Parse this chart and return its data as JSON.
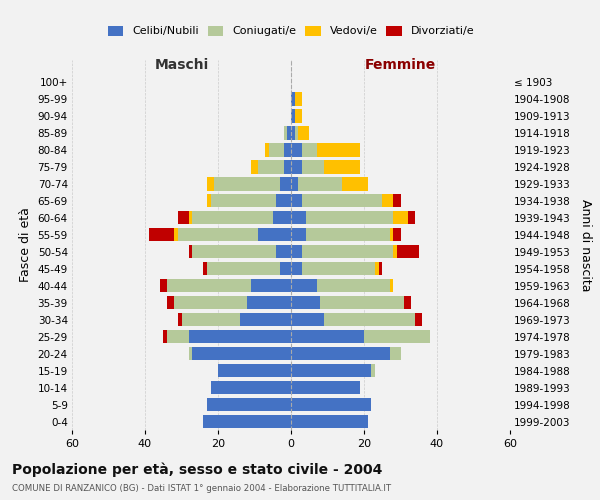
{
  "age_groups": [
    "0-4",
    "5-9",
    "10-14",
    "15-19",
    "20-24",
    "25-29",
    "30-34",
    "35-39",
    "40-44",
    "45-49",
    "50-54",
    "55-59",
    "60-64",
    "65-69",
    "70-74",
    "75-79",
    "80-84",
    "85-89",
    "90-94",
    "95-99",
    "100+"
  ],
  "birth_years": [
    "1999-2003",
    "1994-1998",
    "1989-1993",
    "1984-1988",
    "1979-1983",
    "1974-1978",
    "1969-1973",
    "1964-1968",
    "1959-1963",
    "1954-1958",
    "1949-1953",
    "1944-1948",
    "1939-1943",
    "1934-1938",
    "1929-1933",
    "1924-1928",
    "1919-1923",
    "1914-1918",
    "1909-1913",
    "1904-1908",
    "≤ 1903"
  ],
  "males": {
    "celibi": [
      24,
      23,
      22,
      20,
      27,
      28,
      14,
      12,
      11,
      3,
      4,
      9,
      5,
      4,
      3,
      2,
      2,
      1,
      0,
      0,
      0
    ],
    "coniugati": [
      0,
      0,
      0,
      0,
      1,
      6,
      16,
      20,
      23,
      20,
      23,
      22,
      22,
      18,
      18,
      7,
      4,
      1,
      0,
      0,
      0
    ],
    "vedovi": [
      0,
      0,
      0,
      0,
      0,
      0,
      0,
      0,
      0,
      0,
      0,
      1,
      1,
      1,
      2,
      2,
      1,
      0,
      0,
      0,
      0
    ],
    "divorziati": [
      0,
      0,
      0,
      0,
      0,
      1,
      1,
      2,
      2,
      1,
      1,
      7,
      3,
      0,
      0,
      0,
      0,
      0,
      0,
      0,
      0
    ]
  },
  "females": {
    "nubili": [
      21,
      22,
      19,
      22,
      27,
      20,
      9,
      8,
      7,
      3,
      3,
      4,
      4,
      3,
      2,
      3,
      3,
      1,
      1,
      1,
      0
    ],
    "coniugate": [
      0,
      0,
      0,
      1,
      3,
      18,
      25,
      23,
      20,
      20,
      25,
      23,
      24,
      22,
      12,
      6,
      4,
      1,
      0,
      0,
      0
    ],
    "vedove": [
      0,
      0,
      0,
      0,
      0,
      0,
      0,
      0,
      1,
      1,
      1,
      1,
      4,
      3,
      7,
      10,
      12,
      3,
      2,
      2,
      0
    ],
    "divorziate": [
      0,
      0,
      0,
      0,
      0,
      0,
      2,
      2,
      0,
      1,
      6,
      2,
      2,
      2,
      0,
      0,
      0,
      0,
      0,
      0,
      0
    ]
  },
  "colors": {
    "celibi": "#4472c4",
    "coniugati": "#b5c99a",
    "vedovi": "#ffc000",
    "divorziati": "#c00000"
  },
  "xlim": 60,
  "title": "Popolazione per età, sesso e stato civile - 2004",
  "subtitle": "COMUNE DI RANZANICO (BG) - Dati ISTAT 1° gennaio 2004 - Elaborazione TUTTITALIA.IT",
  "ylabel_left": "Fasce di età",
  "ylabel_right": "Anni di nascita",
  "legend_labels": [
    "Celibi/Nubili",
    "Coniugati/e",
    "Vedovi/e",
    "Divorziati/e"
  ],
  "maschi_label": "Maschi",
  "femmine_label": "Femmine",
  "background_color": "#f2f2f2",
  "grid_color": "#cccccc",
  "xtick_vals": [
    -60,
    -40,
    -20,
    0,
    20,
    40,
    60
  ]
}
